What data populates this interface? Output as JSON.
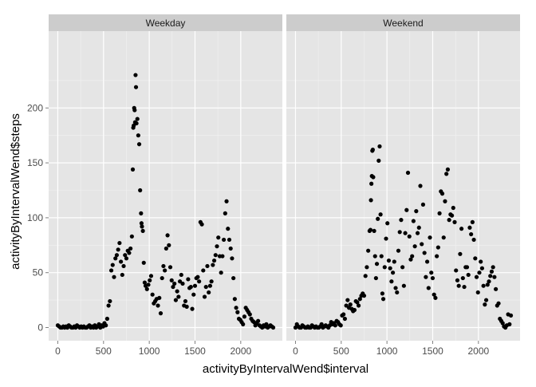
{
  "chart_data": {
    "type": "scatter",
    "xlabel": "activityByIntervalWend$interval",
    "ylabel": "activityByIntervalWend$steps",
    "xlim": [
      -100,
      2455
    ],
    "ylim": [
      -12,
      270
    ],
    "xticks": [
      0,
      500,
      1000,
      1500,
      2000
    ],
    "yticks": [
      0,
      50,
      100,
      150,
      200
    ],
    "grid": true,
    "facets": [
      {
        "name": "Weekday",
        "points": [
          [
            0,
            2
          ],
          [
            15,
            1
          ],
          [
            30,
            0
          ],
          [
            45,
            0
          ],
          [
            60,
            1
          ],
          [
            75,
            0
          ],
          [
            90,
            1
          ],
          [
            105,
            0
          ],
          [
            120,
            2
          ],
          [
            135,
            1
          ],
          [
            150,
            0
          ],
          [
            165,
            0
          ],
          [
            180,
            1
          ],
          [
            195,
            0
          ],
          [
            210,
            2
          ],
          [
            225,
            1
          ],
          [
            240,
            0
          ],
          [
            255,
            1
          ],
          [
            270,
            0
          ],
          [
            285,
            1
          ],
          [
            300,
            0
          ],
          [
            315,
            0
          ],
          [
            330,
            1
          ],
          [
            345,
            2
          ],
          [
            360,
            0
          ],
          [
            375,
            1
          ],
          [
            390,
            0
          ],
          [
            405,
            2
          ],
          [
            420,
            0
          ],
          [
            435,
            1
          ],
          [
            450,
            3
          ],
          [
            465,
            0
          ],
          [
            480,
            2
          ],
          [
            495,
            1
          ],
          [
            510,
            4
          ],
          [
            525,
            2
          ],
          [
            540,
            8
          ],
          [
            555,
            20
          ],
          [
            570,
            24
          ],
          [
            585,
            52
          ],
          [
            600,
            57
          ],
          [
            615,
            46
          ],
          [
            630,
            63
          ],
          [
            645,
            66
          ],
          [
            660,
            71
          ],
          [
            675,
            77
          ],
          [
            690,
            60
          ],
          [
            705,
            48
          ],
          [
            720,
            56
          ],
          [
            735,
            66
          ],
          [
            750,
            63
          ],
          [
            765,
            70
          ],
          [
            780,
            68
          ],
          [
            795,
            72
          ],
          [
            810,
            83
          ],
          [
            820,
            144
          ],
          [
            825,
            182
          ],
          [
            830,
            184
          ],
          [
            835,
            200
          ],
          [
            840,
            198
          ],
          [
            845,
            187
          ],
          [
            850,
            230
          ],
          [
            855,
            219
          ],
          [
            860,
            186
          ],
          [
            870,
            190
          ],
          [
            880,
            175
          ],
          [
            890,
            167
          ],
          [
            900,
            125
          ],
          [
            910,
            104
          ],
          [
            915,
            95
          ],
          [
            920,
            92
          ],
          [
            930,
            88
          ],
          [
            940,
            59
          ],
          [
            950,
            41
          ],
          [
            960,
            38
          ],
          [
            975,
            35
          ],
          [
            990,
            39
          ],
          [
            1005,
            43
          ],
          [
            1020,
            47
          ],
          [
            1035,
            30
          ],
          [
            1050,
            22
          ],
          [
            1065,
            24
          ],
          [
            1080,
            26
          ],
          [
            1095,
            20
          ],
          [
            1110,
            27
          ],
          [
            1125,
            13
          ],
          [
            1140,
            45
          ],
          [
            1155,
            56
          ],
          [
            1170,
            52
          ],
          [
            1185,
            72
          ],
          [
            1200,
            84
          ],
          [
            1215,
            75
          ],
          [
            1230,
            55
          ],
          [
            1245,
            43
          ],
          [
            1260,
            37
          ],
          [
            1275,
            40
          ],
          [
            1290,
            25
          ],
          [
            1305,
            33
          ],
          [
            1320,
            28
          ],
          [
            1335,
            42
          ],
          [
            1350,
            48
          ],
          [
            1365,
            40
          ],
          [
            1380,
            20
          ],
          [
            1395,
            24
          ],
          [
            1410,
            19
          ],
          [
            1425,
            44
          ],
          [
            1440,
            36
          ],
          [
            1455,
            37
          ],
          [
            1470,
            17
          ],
          [
            1485,
            30
          ],
          [
            1500,
            38
          ],
          [
            1515,
            45
          ],
          [
            1530,
            46
          ],
          [
            1545,
            42
          ],
          [
            1560,
            96
          ],
          [
            1575,
            94
          ],
          [
            1590,
            52
          ],
          [
            1605,
            28
          ],
          [
            1620,
            37
          ],
          [
            1635,
            56
          ],
          [
            1650,
            32
          ],
          [
            1665,
            38
          ],
          [
            1680,
            42
          ],
          [
            1695,
            57
          ],
          [
            1710,
            61
          ],
          [
            1725,
            66
          ],
          [
            1740,
            74
          ],
          [
            1755,
            82
          ],
          [
            1770,
            65
          ],
          [
            1785,
            50
          ],
          [
            1800,
            65
          ],
          [
            1815,
            80
          ],
          [
            1830,
            104
          ],
          [
            1845,
            115
          ],
          [
            1860,
            90
          ],
          [
            1875,
            80
          ],
          [
            1890,
            72
          ],
          [
            1905,
            63
          ],
          [
            1920,
            45
          ],
          [
            1935,
            26
          ],
          [
            1950,
            18
          ],
          [
            1965,
            14
          ],
          [
            1980,
            8
          ],
          [
            1995,
            7
          ],
          [
            2010,
            5
          ],
          [
            2025,
            3
          ],
          [
            2040,
            10
          ],
          [
            2055,
            18
          ],
          [
            2070,
            16
          ],
          [
            2085,
            14
          ],
          [
            2100,
            12
          ],
          [
            2115,
            8
          ],
          [
            2130,
            6
          ],
          [
            2145,
            5
          ],
          [
            2160,
            2
          ],
          [
            2175,
            4
          ],
          [
            2190,
            6
          ],
          [
            2205,
            2
          ],
          [
            2220,
            1
          ],
          [
            2235,
            0
          ],
          [
            2250,
            2
          ],
          [
            2265,
            1
          ],
          [
            2280,
            3
          ],
          [
            2295,
            0
          ],
          [
            2310,
            1
          ],
          [
            2325,
            2
          ],
          [
            2340,
            1
          ],
          [
            2355,
            0
          ]
        ]
      },
      {
        "name": "Weekend",
        "points": [
          [
            0,
            0
          ],
          [
            15,
            3
          ],
          [
            30,
            1
          ],
          [
            45,
            0
          ],
          [
            60,
            0
          ],
          [
            75,
            2
          ],
          [
            90,
            1
          ],
          [
            105,
            0
          ],
          [
            120,
            0
          ],
          [
            135,
            1
          ],
          [
            150,
            0
          ],
          [
            165,
            0
          ],
          [
            180,
            2
          ],
          [
            195,
            1
          ],
          [
            210,
            0
          ],
          [
            225,
            1
          ],
          [
            240,
            0
          ],
          [
            255,
            0
          ],
          [
            270,
            1
          ],
          [
            285,
            3
          ],
          [
            300,
            0
          ],
          [
            315,
            1
          ],
          [
            330,
            2
          ],
          [
            345,
            1
          ],
          [
            360,
            0
          ],
          [
            375,
            2
          ],
          [
            390,
            5
          ],
          [
            405,
            3
          ],
          [
            420,
            4
          ],
          [
            435,
            2
          ],
          [
            450,
            6
          ],
          [
            465,
            5
          ],
          [
            480,
            3
          ],
          [
            495,
            2
          ],
          [
            510,
            11
          ],
          [
            525,
            12
          ],
          [
            540,
            8
          ],
          [
            555,
            20
          ],
          [
            570,
            25
          ],
          [
            585,
            18
          ],
          [
            600,
            21
          ],
          [
            615,
            17
          ],
          [
            630,
            15
          ],
          [
            645,
            16
          ],
          [
            660,
            24
          ],
          [
            675,
            23
          ],
          [
            690,
            20
          ],
          [
            705,
            26
          ],
          [
            720,
            29
          ],
          [
            735,
            31
          ],
          [
            750,
            29
          ],
          [
            765,
            47
          ],
          [
            780,
            55
          ],
          [
            795,
            70
          ],
          [
            810,
            88
          ],
          [
            820,
            89
          ],
          [
            825,
            116
          ],
          [
            830,
            131
          ],
          [
            835,
            138
          ],
          [
            840,
            161
          ],
          [
            845,
            162
          ],
          [
            850,
            137
          ],
          [
            860,
            88
          ],
          [
            870,
            65
          ],
          [
            880,
            45
          ],
          [
            890,
            58
          ],
          [
            900,
            99
          ],
          [
            910,
            152
          ],
          [
            920,
            165
          ],
          [
            930,
            103
          ],
          [
            940,
            65
          ],
          [
            950,
            31
          ],
          [
            960,
            26
          ],
          [
            975,
            55
          ],
          [
            990,
            81
          ],
          [
            1005,
            95
          ],
          [
            1020,
            61
          ],
          [
            1035,
            54
          ],
          [
            1050,
            42
          ],
          [
            1065,
            50
          ],
          [
            1080,
            60
          ],
          [
            1095,
            36
          ],
          [
            1110,
            32
          ],
          [
            1125,
            70
          ],
          [
            1140,
            87
          ],
          [
            1155,
            98
          ],
          [
            1170,
            55
          ],
          [
            1185,
            38
          ],
          [
            1200,
            86
          ],
          [
            1215,
            107
          ],
          [
            1230,
            141
          ],
          [
            1245,
            83
          ],
          [
            1260,
            62
          ],
          [
            1275,
            65
          ],
          [
            1290,
            97
          ],
          [
            1305,
            74
          ],
          [
            1320,
            106
          ],
          [
            1335,
            86
          ],
          [
            1350,
            91
          ],
          [
            1365,
            129
          ],
          [
            1380,
            76
          ],
          [
            1395,
            112
          ],
          [
            1410,
            68
          ],
          [
            1425,
            46
          ],
          [
            1440,
            60
          ],
          [
            1455,
            36
          ],
          [
            1470,
            82
          ],
          [
            1485,
            50
          ],
          [
            1500,
            45
          ],
          [
            1515,
            30
          ],
          [
            1530,
            27
          ],
          [
            1545,
            65
          ],
          [
            1560,
            73
          ],
          [
            1575,
            104
          ],
          [
            1590,
            124
          ],
          [
            1605,
            122
          ],
          [
            1620,
            82
          ],
          [
            1635,
            115
          ],
          [
            1650,
            140
          ],
          [
            1665,
            144
          ],
          [
            1680,
            98
          ],
          [
            1695,
            103
          ],
          [
            1710,
            102
          ],
          [
            1725,
            109
          ],
          [
            1740,
            96
          ],
          [
            1755,
            52
          ],
          [
            1770,
            43
          ],
          [
            1785,
            38
          ],
          [
            1800,
            67
          ],
          [
            1815,
            90
          ],
          [
            1830,
            45
          ],
          [
            1845,
            37
          ],
          [
            1860,
            55
          ],
          [
            1875,
            55
          ],
          [
            1890,
            48
          ],
          [
            1905,
            91
          ],
          [
            1920,
            85
          ],
          [
            1935,
            96
          ],
          [
            1950,
            80
          ],
          [
            1965,
            63
          ],
          [
            1980,
            46
          ],
          [
            1995,
            32
          ],
          [
            2010,
            50
          ],
          [
            2025,
            60
          ],
          [
            2040,
            54
          ],
          [
            2055,
            38
          ],
          [
            2070,
            21
          ],
          [
            2085,
            25
          ],
          [
            2100,
            39
          ],
          [
            2115,
            42
          ],
          [
            2130,
            47
          ],
          [
            2145,
            51
          ],
          [
            2160,
            55
          ],
          [
            2175,
            46
          ],
          [
            2190,
            35
          ],
          [
            2205,
            20
          ],
          [
            2220,
            22
          ],
          [
            2235,
            8
          ],
          [
            2250,
            6
          ],
          [
            2265,
            4
          ],
          [
            2280,
            1
          ],
          [
            2295,
            0
          ],
          [
            2310,
            2
          ],
          [
            2325,
            12
          ],
          [
            2340,
            3
          ],
          [
            2355,
            11
          ]
        ]
      }
    ]
  },
  "colors": {
    "panel_background": "#e5e5e5",
    "grid_major": "#ffffff",
    "grid_minor": "#f2f2f2",
    "strip_background": "#cccccc",
    "point": "#000000",
    "tick": "#7f7f7f"
  }
}
